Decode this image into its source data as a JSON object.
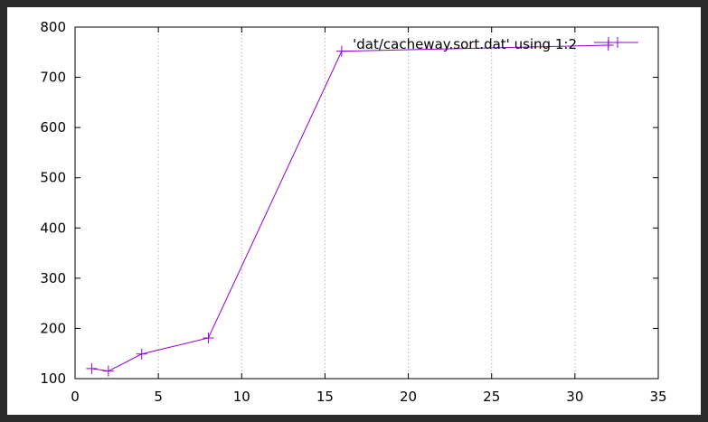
{
  "chart_data": {
    "type": "line",
    "title": "",
    "xlabel": "",
    "ylabel": "",
    "xlim": [
      0,
      35
    ],
    "ylim": [
      100,
      800
    ],
    "xticks": [
      0,
      5,
      10,
      15,
      20,
      25,
      30,
      35
    ],
    "yticks": [
      100,
      200,
      300,
      400,
      500,
      600,
      700,
      800
    ],
    "x_grid": true,
    "y_grid": false,
    "legend_position": "top-right",
    "series": [
      {
        "name": "'dat/cacheway.sort.dat' using 1:2",
        "color": "#9400d3",
        "marker": "plus",
        "x": [
          1,
          2,
          4,
          8,
          16,
          32
        ],
        "y": [
          120,
          115,
          149,
          181,
          752,
          764
        ]
      }
    ]
  }
}
